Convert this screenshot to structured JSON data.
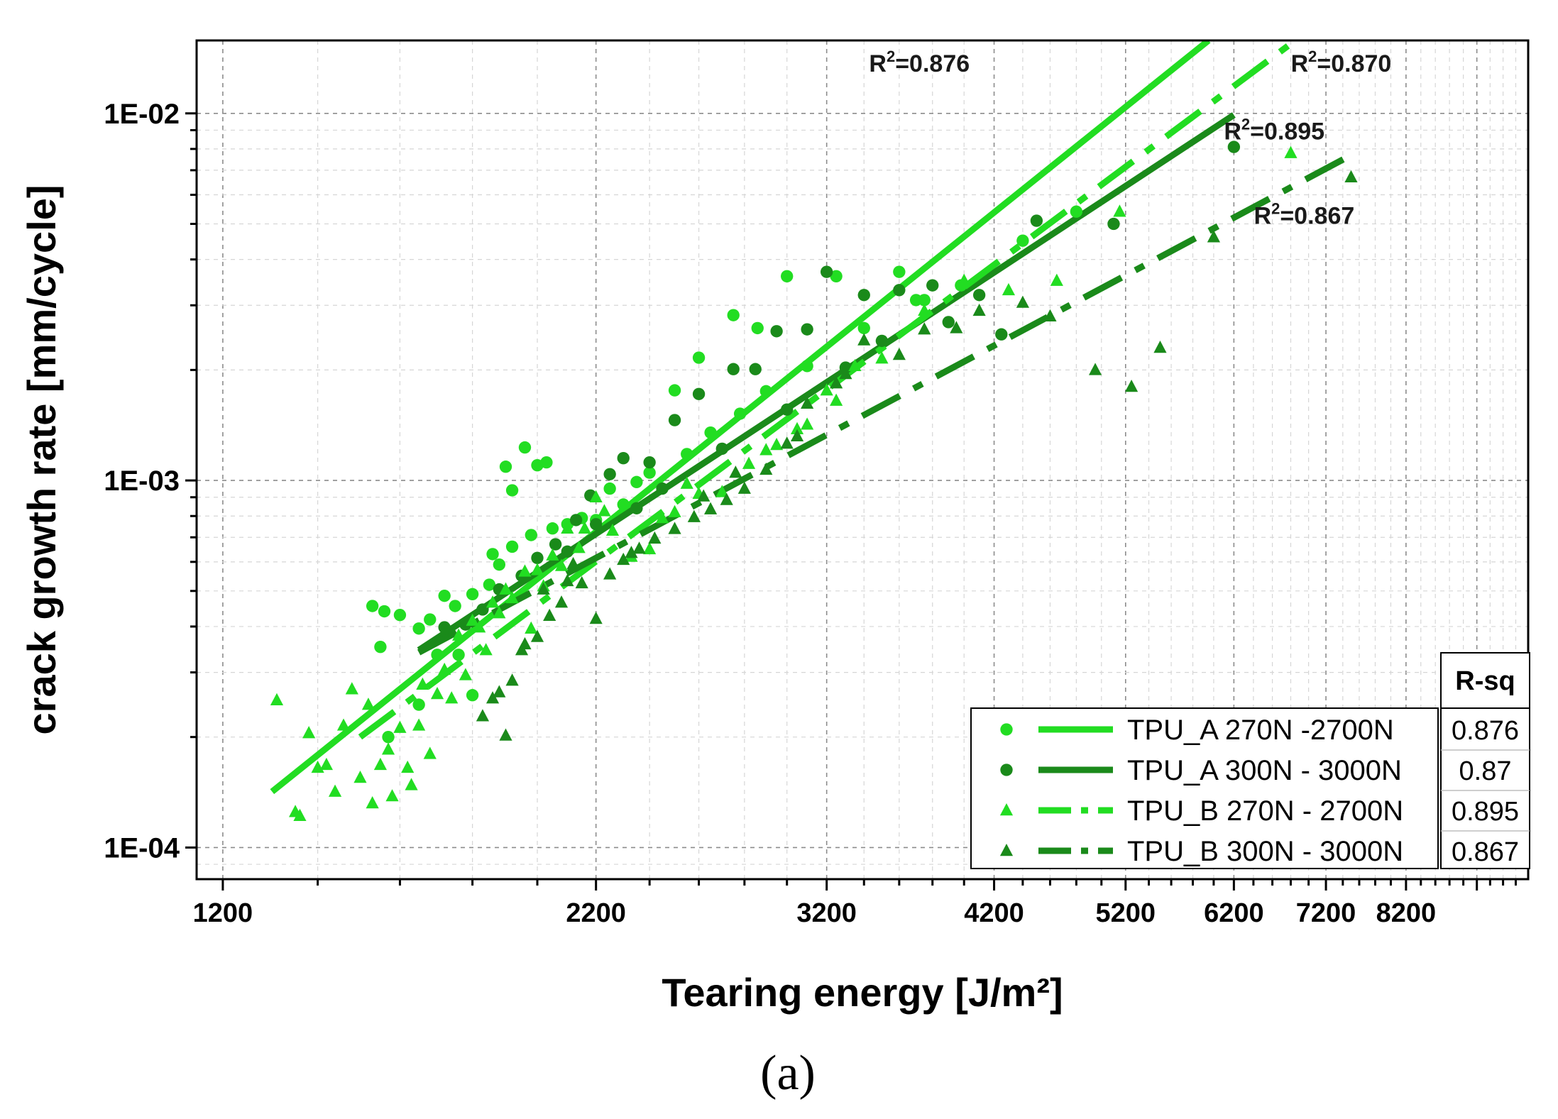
{
  "chart_data": {
    "type": "scatter",
    "x_scale": "log",
    "y_scale": "log",
    "xlabel": "Tearing energy [J/m²]",
    "ylabel": "crack growth rate [mm/cycle]",
    "caption": "(a)",
    "xlim": [
      1150,
      10000
    ],
    "ylim": [
      8.2e-05,
      0.0158
    ],
    "x_ticks": [
      {
        "value": 1200,
        "label": "1200"
      },
      {
        "value": 2200,
        "label": "2200"
      },
      {
        "value": 3200,
        "label": "3200"
      },
      {
        "value": 4200,
        "label": "4200"
      },
      {
        "value": 5200,
        "label": "5200"
      },
      {
        "value": 6200,
        "label": "6200"
      },
      {
        "value": 7200,
        "label": "7200"
      },
      {
        "value": 8200,
        "label": "8200"
      }
    ],
    "y_ticks": [
      {
        "value": 0.0001,
        "label": "1E-04"
      },
      {
        "value": 0.001,
        "label": "1E-03"
      },
      {
        "value": 0.01,
        "label": "1E-02"
      }
    ],
    "grid": true,
    "colors": {
      "light_green": "#22dd22",
      "dark_green": "#1a8a1a",
      "axis": "#000000",
      "grid": "#9a9a9a"
    },
    "series": [
      {
        "name": "TPU_A 270N -2700N",
        "marker": "circle",
        "color": "#22dd22",
        "line_style": "solid",
        "fit": {
          "x": [
            1300,
            5950
          ],
          "y": [
            0.000142,
            0.0158
          ]
        },
        "points": [
          [
            1530,
            0.000455
          ],
          [
            1560,
            0.00044
          ],
          [
            1570,
            0.0002
          ],
          [
            1600,
            0.00043
          ],
          [
            1650,
            0.000245
          ],
          [
            1700,
            0.000335
          ],
          [
            1720,
            0.000485
          ],
          [
            1760,
            0.000335
          ],
          [
            1800,
            0.00026
          ],
          [
            1860,
            0.00063
          ],
          [
            1900,
            0.00109
          ],
          [
            1920,
            0.00094
          ],
          [
            1960,
            0.00123
          ],
          [
            2000,
            0.0011
          ],
          [
            2030,
            0.00112
          ],
          [
            2100,
            0.00076
          ],
          [
            2200,
            0.00078
          ],
          [
            2300,
            0.00086
          ],
          [
            2350,
            0.00099
          ],
          [
            2500,
            0.00176
          ],
          [
            2600,
            0.00216
          ],
          [
            2750,
            0.00282
          ],
          [
            2860,
            0.0026
          ],
          [
            3000,
            0.0036
          ],
          [
            3250,
            0.0036
          ],
          [
            3600,
            0.0037
          ],
          [
            3750,
            0.0031
          ],
          [
            3980,
            0.0034
          ],
          [
            4400,
            0.0045
          ],
          [
            4800,
            0.0054
          ],
          [
            1550,
            0.000352
          ],
          [
            1650,
            0.000395
          ],
          [
            1680,
            0.000418
          ],
          [
            1750,
            0.000455
          ],
          [
            1800,
            0.00049
          ],
          [
            1850,
            0.00052
          ],
          [
            1880,
            0.00059
          ],
          [
            1920,
            0.00066
          ],
          [
            1980,
            0.00071
          ],
          [
            2050,
            0.00074
          ],
          [
            2150,
            0.00079
          ],
          [
            2250,
            0.00095
          ],
          [
            2400,
            0.00105
          ],
          [
            2550,
            0.00118
          ],
          [
            2650,
            0.00135
          ],
          [
            2780,
            0.00152
          ],
          [
            2900,
            0.00175
          ],
          [
            3100,
            0.00205
          ],
          [
            3400,
            0.0026
          ],
          [
            3700,
            0.0031
          ]
        ]
      },
      {
        "name": "TPU_A 300N - 3000N",
        "marker": "circle",
        "color": "#1a8a1a",
        "line_style": "solid",
        "fit": {
          "x": [
            1650,
            6200
          ],
          "y": [
            0.000345,
            0.0099
          ]
        },
        "points": [
          [
            1720,
            0.000398
          ],
          [
            1780,
            0.000405
          ],
          [
            1830,
            0.000445
          ],
          [
            1880,
            0.000505
          ],
          [
            1950,
            0.00055
          ],
          [
            2000,
            0.000615
          ],
          [
            2060,
            0.00067
          ],
          [
            2130,
            0.00078
          ],
          [
            2180,
            0.00091
          ],
          [
            2250,
            0.00104
          ],
          [
            2300,
            0.00115
          ],
          [
            2400,
            0.00112
          ],
          [
            2500,
            0.00146
          ],
          [
            2600,
            0.00172
          ],
          [
            2750,
            0.00201
          ],
          [
            2850,
            0.00201
          ],
          [
            2950,
            0.00255
          ],
          [
            3100,
            0.00258
          ],
          [
            3200,
            0.0037
          ],
          [
            3400,
            0.0032
          ],
          [
            3600,
            0.0033
          ],
          [
            3800,
            0.0034
          ],
          [
            4100,
            0.0032
          ],
          [
            4250,
            0.0025
          ],
          [
            4500,
            0.0051
          ],
          [
            5100,
            0.005
          ],
          [
            6200,
            0.0081
          ],
          [
            2100,
            0.00064
          ],
          [
            2200,
            0.00076
          ],
          [
            2350,
            0.00084
          ],
          [
            2450,
            0.00095
          ],
          [
            2700,
            0.00122
          ],
          [
            3000,
            0.00156
          ],
          [
            3300,
            0.00203
          ],
          [
            3500,
            0.0024
          ],
          [
            3900,
            0.0027
          ]
        ]
      },
      {
        "name": "TPU_B 270N - 2700N",
        "marker": "triangle",
        "color": "#22dd22",
        "line_style": "dashdot",
        "fit": {
          "x": [
            1500,
            6850
          ],
          "y": [
            0.0002,
            0.0158
          ]
        },
        "points": [
          [
            1310,
            0.000252
          ],
          [
            1350,
            0.000125
          ],
          [
            1380,
            0.000205
          ],
          [
            1400,
            0.000165
          ],
          [
            1440,
            0.000142
          ],
          [
            1460,
            0.000215
          ],
          [
            1480,
            0.00027
          ],
          [
            1500,
            0.000155
          ],
          [
            1520,
            0.000245
          ],
          [
            1550,
            0.000168
          ],
          [
            1580,
            0.000138
          ],
          [
            1600,
            0.000212
          ],
          [
            1620,
            0.000165
          ],
          [
            1650,
            0.000215
          ],
          [
            1680,
            0.00018
          ],
          [
            1700,
            0.000262
          ],
          [
            1720,
            0.000305
          ],
          [
            1760,
            0.000378
          ],
          [
            1800,
            0.000415
          ],
          [
            1820,
            0.000398
          ],
          [
            1860,
            0.000465
          ],
          [
            1900,
            0.000505
          ],
          [
            1960,
            0.000565
          ],
          [
            2000,
            0.00057
          ],
          [
            2050,
            0.000625
          ],
          [
            2100,
            0.00074
          ],
          [
            2160,
            0.00074
          ],
          [
            2200,
            0.0009
          ],
          [
            2260,
            0.00073
          ],
          [
            2330,
            0.00062
          ],
          [
            2400,
            0.00065
          ],
          [
            2500,
            0.00082
          ],
          [
            2600,
            0.00092
          ],
          [
            2700,
            0.00093
          ],
          [
            2820,
            0.00111
          ],
          [
            2950,
            0.00125
          ],
          [
            3100,
            0.00142
          ],
          [
            3200,
            0.00176
          ],
          [
            3350,
            0.00205
          ],
          [
            3500,
            0.00215
          ],
          [
            3750,
            0.0029
          ],
          [
            4000,
            0.0035
          ],
          [
            4300,
            0.0033
          ],
          [
            4650,
            0.0035
          ],
          [
            5150,
            0.0054
          ],
          [
            6800,
            0.0078
          ],
          [
            1360,
            0.000122
          ],
          [
            1420,
            0.000168
          ],
          [
            1530,
            0.000132
          ],
          [
            1570,
            0.000185
          ],
          [
            1630,
            0.000148
          ],
          [
            1660,
            0.000278
          ],
          [
            1740,
            0.000255
          ],
          [
            1780,
            0.000295
          ],
          [
            1840,
            0.000345
          ],
          [
            1880,
            0.000435
          ],
          [
            1920,
            0.000478
          ],
          [
            1980,
            0.000395
          ],
          [
            2020,
            0.000515
          ],
          [
            2080,
            0.000585
          ],
          [
            2140,
            0.000655
          ],
          [
            2230,
            0.000825
          ],
          [
            2450,
            0.00079
          ],
          [
            2550,
            0.00098
          ],
          [
            2900,
            0.00121
          ],
          [
            3050,
            0.00138
          ],
          [
            3250,
            0.00165
          ]
        ]
      },
      {
        "name": "TPU_B 300N - 3000N",
        "marker": "triangle",
        "color": "#1a8a1a",
        "line_style": "dashdot",
        "fit": {
          "x": [
            1650,
            7550
          ],
          "y": [
            0.00034,
            0.0078
          ]
        },
        "points": [
          [
            1830,
            0.000228
          ],
          [
            1860,
            0.000255
          ],
          [
            1880,
            0.000265
          ],
          [
            1900,
            0.000202
          ],
          [
            1920,
            0.000285
          ],
          [
            1960,
            0.000358
          ],
          [
            2000,
            0.000375
          ],
          [
            2040,
            0.000428
          ],
          [
            2080,
            0.000465
          ],
          [
            2100,
            0.000532
          ],
          [
            2150,
            0.000525
          ],
          [
            2200,
            0.00042
          ],
          [
            2250,
            0.000555
          ],
          [
            2300,
            0.000608
          ],
          [
            2360,
            0.000652
          ],
          [
            2420,
            0.000695
          ],
          [
            2500,
            0.000738
          ],
          [
            2580,
            0.000795
          ],
          [
            2650,
            0.000835
          ],
          [
            2720,
            0.000885
          ],
          [
            2800,
            0.00095
          ],
          [
            2900,
            0.00107
          ],
          [
            3000,
            0.00126
          ],
          [
            3100,
            0.00162
          ],
          [
            3250,
            0.00184
          ],
          [
            3400,
            0.00241
          ],
          [
            3750,
            0.00258
          ],
          [
            3950,
            0.0026
          ],
          [
            4100,
            0.0029
          ],
          [
            4600,
            0.0028
          ],
          [
            4950,
            0.002
          ],
          [
            5250,
            0.0018
          ],
          [
            5500,
            0.0023
          ],
          [
            6000,
            0.0046
          ],
          [
            7500,
            0.0067
          ],
          [
            1950,
            0.000345
          ],
          [
            2020,
            0.000505
          ],
          [
            2120,
            0.000592
          ],
          [
            2330,
            0.000635
          ],
          [
            2620,
            0.000905
          ],
          [
            2760,
            0.00105
          ],
          [
            3050,
            0.00132
          ],
          [
            3300,
            0.00195
          ],
          [
            3600,
            0.0022
          ],
          [
            4400,
            0.00305
          ]
        ]
      }
    ],
    "r2_labels": [
      {
        "text": "R²=0.876",
        "x": 3720,
        "y": 0.013
      },
      {
        "text": "R²=0.870",
        "x": 7380,
        "y": 0.013
      },
      {
        "text": "R²=0.895",
        "x": 6620,
        "y": 0.0085
      },
      {
        "text": "R²=0.867",
        "x": 6950,
        "y": 0.005
      }
    ],
    "legend": {
      "position": "bottom-right",
      "rsq_header": "R-sq",
      "entries": [
        {
          "label": "TPU_A 270N -2700N",
          "rsq": "0.876"
        },
        {
          "label": "TPU_A 300N - 3000N",
          "rsq": "0.87"
        },
        {
          "label": "TPU_B 270N - 2700N",
          "rsq": "0.895"
        },
        {
          "label": "TPU_B 300N - 3000N",
          "rsq": "0.867"
        }
      ]
    }
  }
}
